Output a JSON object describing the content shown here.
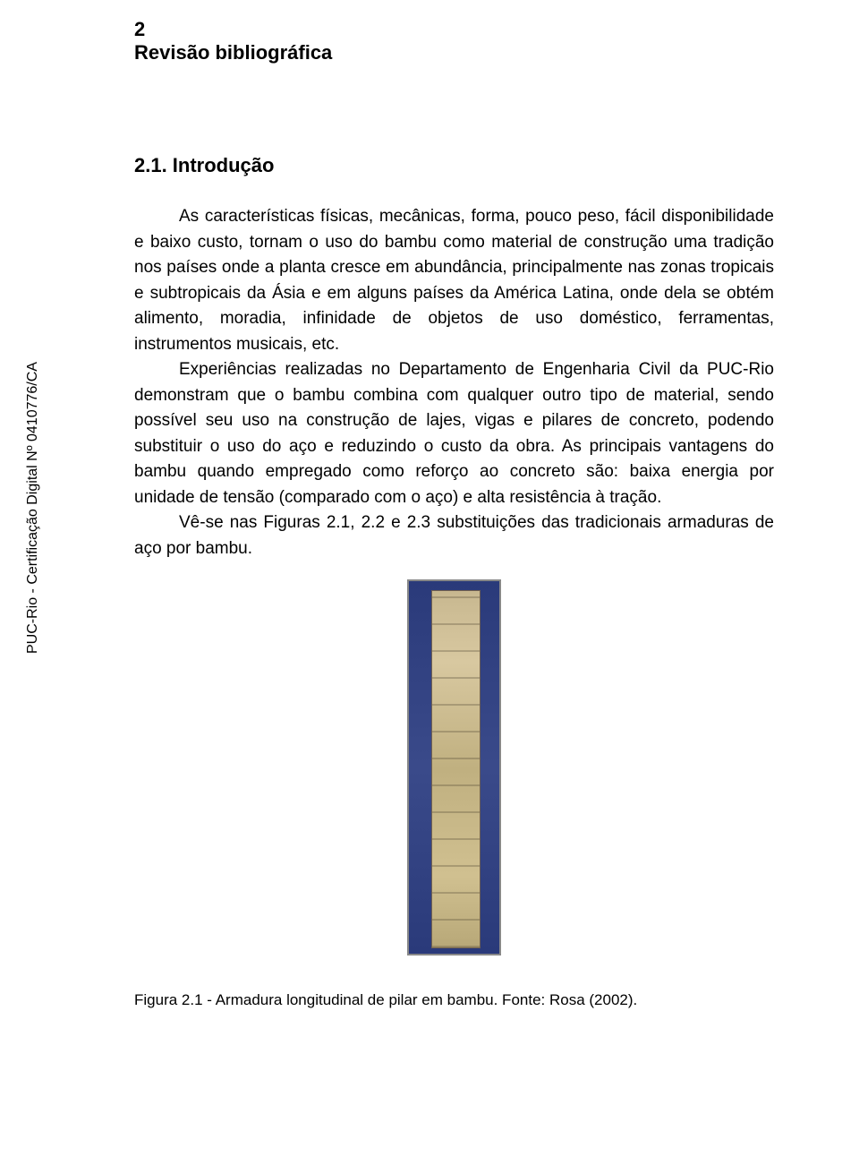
{
  "sideText": "PUC-Rio - Certificação Digital Nº 0410776/CA",
  "chapterNum": "2",
  "chapterTitle": "Revisão bibliográfica",
  "sectionHeading": "2.1. Introdução",
  "paragraph1": "As características físicas, mecânicas, forma, pouco peso, fácil disponibilidade e baixo custo, tornam o uso do bambu como material de construção uma tradição nos países onde a planta cresce em abundância, principalmente nas zonas tropicais e subtropicais da Ásia e em alguns países da América Latina, onde dela se obtém alimento, moradia, infinidade de objetos de uso doméstico, ferramentas, instrumentos musicais, etc.",
  "paragraph2": "Experiências realizadas no Departamento de Engenharia Civil da PUC-Rio demonstram que o bambu combina com qualquer outro tipo de material, sendo possível seu uso na construção de lajes, vigas e pilares de concreto, podendo substituir o uso do aço e reduzindo o custo da obra. As principais vantagens do bambu quando empregado como reforço ao concreto são: baixa energia por unidade de tensão (comparado com o aço) e alta resistência à tração.",
  "paragraph3": "Vê-se nas Figuras 2.1, 2.2 e 2.3 substituições das tradicionais armaduras de aço por bambu.",
  "figureCaption": "Figura 2.1 - Armadura longitudinal de pilar em bambu. Fonte: Rosa (2002)."
}
